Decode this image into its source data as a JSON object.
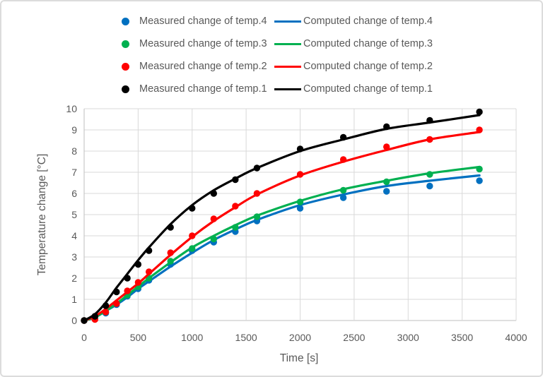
{
  "chart_data": {
    "type": "line",
    "title": "",
    "xlabel": "Time [s]",
    "ylabel": "Temperature change [°C]",
    "xlim": [
      0,
      4000
    ],
    "ylim": [
      0,
      10
    ],
    "xticks": [
      0,
      500,
      1000,
      1500,
      2000,
      2500,
      3000,
      3500,
      4000
    ],
    "yticks": [
      0,
      1,
      2,
      3,
      4,
      5,
      6,
      7,
      8,
      9,
      10
    ],
    "grid": true,
    "legend_position": "top",
    "grid_color": "#D9D9D9",
    "axis_color": "#BFBFBF",
    "text_color": "#595959",
    "x": [
      0,
      100,
      200,
      300,
      400,
      500,
      600,
      800,
      1000,
      1200,
      1400,
      1600,
      2000,
      2400,
      2800,
      3200,
      3660
    ],
    "series": [
      {
        "name": "Measured change of temp.4",
        "style": "scatter",
        "color": "#0070C0",
        "values": [
          0,
          0.1,
          0.35,
          0.75,
          1.15,
          1.5,
          1.9,
          2.65,
          3.3,
          3.7,
          4.2,
          4.7,
          5.3,
          5.8,
          6.1,
          6.35,
          6.6
        ]
      },
      {
        "name": "Computed change of temp.4",
        "style": "line",
        "color": "#0070C0",
        "values": [
          0,
          0.15,
          0.45,
          0.75,
          1.1,
          1.5,
          1.85,
          2.55,
          3.2,
          3.8,
          4.3,
          4.75,
          5.45,
          5.95,
          6.35,
          6.6,
          6.85
        ]
      },
      {
        "name": "Measured change of temp.3",
        "style": "scatter",
        "color": "#00B050",
        "values": [
          0,
          0.1,
          0.4,
          0.8,
          1.2,
          1.6,
          2.0,
          2.8,
          3.4,
          3.85,
          4.4,
          4.9,
          5.6,
          6.15,
          6.55,
          6.9,
          7.15
        ]
      },
      {
        "name": "Computed change of temp.3",
        "style": "line",
        "color": "#00B050",
        "values": [
          0,
          0.15,
          0.45,
          0.8,
          1.2,
          1.6,
          2.0,
          2.75,
          3.45,
          4.0,
          4.5,
          4.95,
          5.65,
          6.2,
          6.6,
          6.95,
          7.25
        ]
      },
      {
        "name": "Measured change of temp.2",
        "style": "scatter",
        "color": "#FF0000",
        "values": [
          0,
          0.05,
          0.4,
          0.8,
          1.4,
          1.8,
          2.3,
          3.2,
          4.0,
          4.8,
          5.4,
          6.0,
          6.9,
          7.6,
          8.2,
          8.55,
          9.0
        ]
      },
      {
        "name": "Computed change of temp.2",
        "style": "line",
        "color": "#FF0000",
        "values": [
          0,
          0.2,
          0.55,
          0.95,
          1.35,
          1.75,
          2.2,
          3.1,
          3.95,
          4.7,
          5.35,
          5.95,
          6.85,
          7.5,
          8.05,
          8.55,
          8.9
        ]
      },
      {
        "name": "Measured change of temp.1",
        "style": "scatter",
        "color": "#000000",
        "values": [
          0,
          0.2,
          0.7,
          1.35,
          2.0,
          2.65,
          3.3,
          4.4,
          5.3,
          6.0,
          6.65,
          7.2,
          8.1,
          8.65,
          9.15,
          9.45,
          9.85
        ]
      },
      {
        "name": "Computed change of temp.1",
        "style": "line",
        "color": "#000000",
        "values": [
          0,
          0.3,
          0.85,
          1.55,
          2.2,
          2.85,
          3.45,
          4.55,
          5.45,
          6.15,
          6.7,
          7.2,
          8.0,
          8.55,
          9.05,
          9.35,
          9.7
        ]
      }
    ]
  }
}
